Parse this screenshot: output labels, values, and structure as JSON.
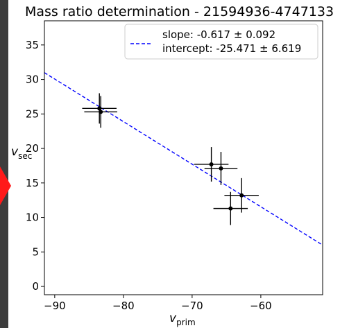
{
  "chart_data": {
    "type": "scatter",
    "title": "Mass ratio determination - 21594936-4747133",
    "xlabel": {
      "base": "v",
      "sub": "prim"
    },
    "ylabel": {
      "base": "v",
      "sub": "sec"
    },
    "xlim": [
      -91.5,
      -51
    ],
    "ylim": [
      -1.2,
      38.5
    ],
    "xticks": [
      -90,
      -80,
      -70,
      -60
    ],
    "yticks": [
      0,
      5,
      10,
      15,
      20,
      25,
      30,
      35
    ],
    "xtick_labels": [
      "−90",
      "−80",
      "−70",
      "−60"
    ],
    "ytick_labels": [
      "0",
      "5",
      "10",
      "15",
      "20",
      "25",
      "30",
      "35"
    ],
    "points": [
      {
        "x": -83.5,
        "y": 25.8,
        "xerr": 2.5,
        "yerr": 2.2
      },
      {
        "x": -83.3,
        "y": 25.3,
        "xerr": 2.4,
        "yerr": 2.3
      },
      {
        "x": -67.2,
        "y": 17.7,
        "xerr": 2.5,
        "yerr": 2.5
      },
      {
        "x": -65.8,
        "y": 17.1,
        "xerr": 2.4,
        "yerr": 2.4
      },
      {
        "x": -62.8,
        "y": 13.2,
        "xerr": 2.5,
        "yerr": 2.5
      },
      {
        "x": -64.4,
        "y": 11.3,
        "xerr": 2.5,
        "yerr": 2.4
      }
    ],
    "fit": {
      "slope": -0.617,
      "intercept": -25.471,
      "color": "#0000ff",
      "style": "dashed"
    },
    "marker_color": "#000000",
    "legend": {
      "placement": "top-right",
      "lines": [
        "slope: -0.617 ± 0.092",
        "intercept: -25.471 ± 6.619"
      ]
    },
    "grid": false
  }
}
